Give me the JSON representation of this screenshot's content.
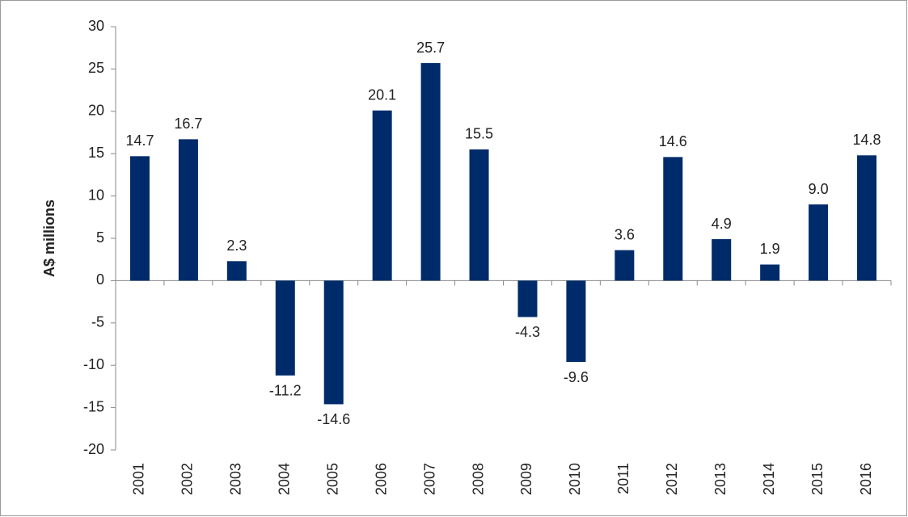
{
  "chart_data": {
    "type": "bar",
    "y_label": "A$ millions",
    "categories": [
      "2001",
      "2002",
      "2003",
      "2004",
      "2005",
      "2006",
      "2007",
      "2008",
      "2009",
      "2010",
      "2011",
      "2012",
      "2013",
      "2014",
      "2015",
      "2016"
    ],
    "values": [
      14.7,
      16.7,
      2.3,
      -11.2,
      -14.6,
      20.1,
      25.7,
      15.5,
      -4.3,
      -9.6,
      3.6,
      14.6,
      4.9,
      1.9,
      9.0,
      14.8
    ],
    "value_labels": [
      "14.7",
      "16.7",
      "2.3",
      "-11.2",
      "-14.6",
      "20.1",
      "25.7",
      "15.5",
      "-4.3",
      "-9.6",
      "3.6",
      "14.6",
      "4.9",
      "1.9",
      "9.0",
      "14.8"
    ],
    "color": "#002b6b",
    "ylim": [
      -20,
      30
    ],
    "yticks": [
      -20,
      -15,
      -10,
      -5,
      0,
      5,
      10,
      15,
      20,
      25,
      30
    ],
    "grid": false
  }
}
